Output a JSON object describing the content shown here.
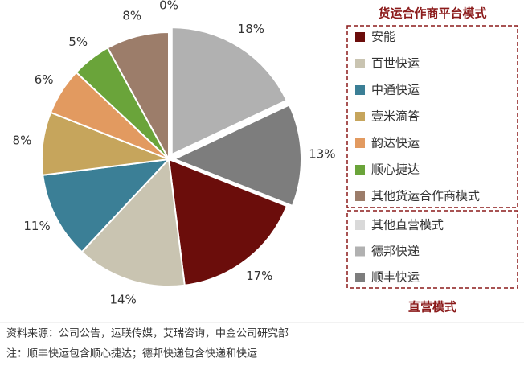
{
  "chart_data": {
    "type": "pie",
    "groups": [
      {
        "title": "货运合作商平台模式",
        "explode": false,
        "items": [
          {
            "name": "安能",
            "color": "#6b0d0b",
            "value": 17,
            "value_label": "17%"
          },
          {
            "name": "百世快运",
            "color": "#c9c4b1",
            "value": 14,
            "value_label": "14%"
          },
          {
            "name": "中通快运",
            "color": "#3b7f96",
            "value": 11,
            "value_label": "11%"
          },
          {
            "name": "壹米滴答",
            "color": "#c6a55c",
            "value": 8,
            "value_label": "8%"
          },
          {
            "name": "韵达快运",
            "color": "#e29a60",
            "value": 6,
            "value_label": "6%"
          },
          {
            "name": "顺心捷达",
            "color": "#6aa43a",
            "value": 5,
            "value_label": "5%"
          },
          {
            "name": "其他货运合作商模式",
            "color": "#9c7d6a",
            "value": 8,
            "value_label": "8%"
          }
        ]
      },
      {
        "title": "直营模式",
        "explode": true,
        "items": [
          {
            "name": "其他直营模式",
            "color": "#d9d9d9",
            "value": 0,
            "value_label": "0%"
          },
          {
            "name": "德邦快递",
            "color": "#b1b1b1",
            "value": 18,
            "value_label": "18%"
          },
          {
            "name": "顺丰快运",
            "color": "#7d7d7d",
            "value": 13,
            "value_label": "13%"
          }
        ]
      }
    ],
    "notes": [
      "资料来源：公司公告，运联传媒，艾瑞咨询，中金公司研究部",
      "注：顺丰快运包含顺心捷达；德邦快递包含快递和快运"
    ]
  }
}
